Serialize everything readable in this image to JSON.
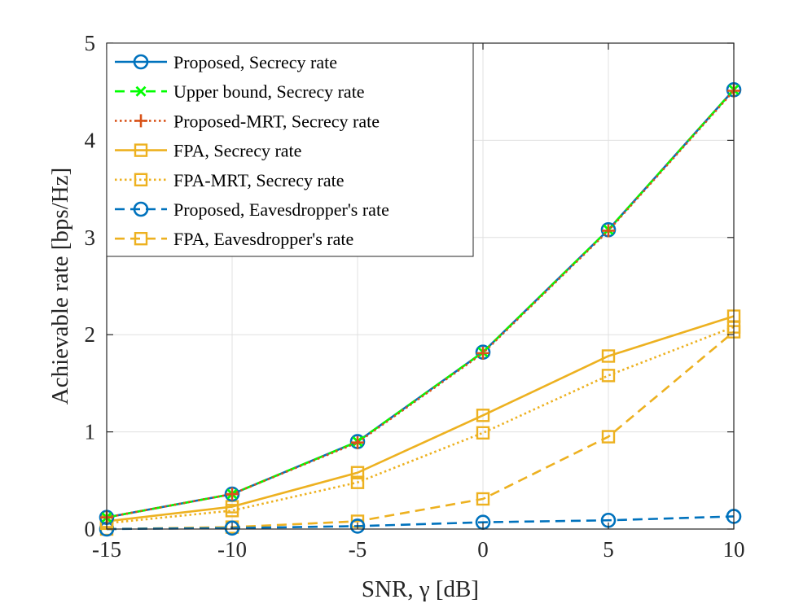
{
  "chart_data": {
    "type": "line",
    "xlabel": "SNR, γ [dB]",
    "ylabel": "Achievable rate [bps/Hz]",
    "xlim": [
      -15,
      10
    ],
    "ylim": [
      0,
      5
    ],
    "xticks": [
      -15,
      -10,
      -5,
      0,
      5,
      10
    ],
    "yticks": [
      0,
      1,
      2,
      3,
      4,
      5
    ],
    "x_tick_labels": [
      "-15",
      "-10",
      "-5",
      "0",
      "5",
      "10"
    ],
    "y_tick_labels": [
      "0",
      "1",
      "2",
      "3",
      "4",
      "5"
    ],
    "grid": true,
    "legend_position": "top-left",
    "x": [
      -15,
      -10,
      -5,
      0,
      5,
      10
    ],
    "series": [
      {
        "name": "Proposed, Secrecy rate",
        "values": [
          0.12,
          0.36,
          0.9,
          1.82,
          3.08,
          4.52
        ],
        "color": "#0072BD",
        "style": "solid",
        "marker": "circle"
      },
      {
        "name": "Upper bound, Secrecy rate",
        "values": [
          0.12,
          0.36,
          0.9,
          1.82,
          3.08,
          4.52
        ],
        "color": "#00FF00",
        "style": "dashed",
        "marker": "x"
      },
      {
        "name": "Proposed-MRT, Secrecy rate",
        "values": [
          0.12,
          0.36,
          0.89,
          1.81,
          3.07,
          4.51
        ],
        "color": "#D95319",
        "style": "dotted",
        "marker": "plus"
      },
      {
        "name": "FPA, Secrecy rate",
        "values": [
          0.08,
          0.23,
          0.58,
          1.17,
          1.78,
          2.19
        ],
        "color": "#EDB120",
        "style": "solid",
        "marker": "square"
      },
      {
        "name": "FPA-MRT, Secrecy rate",
        "values": [
          0.06,
          0.19,
          0.48,
          0.99,
          1.58,
          2.08
        ],
        "color": "#EDB120",
        "style": "dotted",
        "marker": "square"
      },
      {
        "name": "Proposed, Eavesdropper's rate",
        "values": [
          0.0,
          0.01,
          0.03,
          0.07,
          0.09,
          0.13
        ],
        "color": "#0072BD",
        "style": "dashed",
        "marker": "circle"
      },
      {
        "name": "FPA, Eavesdropper's rate",
        "values": [
          0.0,
          0.02,
          0.08,
          0.31,
          0.95,
          2.03
        ],
        "color": "#EDB120",
        "style": "dashed",
        "marker": "square"
      }
    ]
  }
}
